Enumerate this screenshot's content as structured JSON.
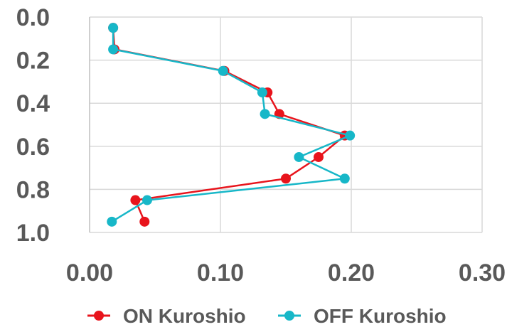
{
  "chart_data": {
    "type": "line",
    "title": "",
    "xlabel": "",
    "ylabel": "",
    "xlim": [
      0.0,
      0.3
    ],
    "ylim": [
      0.0,
      1.0
    ],
    "y_inverted": true,
    "x_ticks": [
      "0.00",
      "0.10",
      "0.20",
      "0.30"
    ],
    "y_ticks": [
      "0.0",
      "0.2",
      "0.4",
      "0.6",
      "0.8",
      "1.0"
    ],
    "grid": "vertical and horizontal",
    "legend_position": "bottom",
    "series": [
      {
        "name": "ON Kuroshio",
        "color": "#e8141c",
        "points": [
          {
            "x": 0.018,
            "y": 0.05
          },
          {
            "x": 0.019,
            "y": 0.15
          },
          {
            "x": 0.103,
            "y": 0.25
          },
          {
            "x": 0.136,
            "y": 0.35
          },
          {
            "x": 0.145,
            "y": 0.45
          },
          {
            "x": 0.195,
            "y": 0.55
          },
          {
            "x": 0.175,
            "y": 0.65
          },
          {
            "x": 0.15,
            "y": 0.75
          },
          {
            "x": 0.035,
            "y": 0.85
          },
          {
            "x": 0.042,
            "y": 0.95
          }
        ]
      },
      {
        "name": "OFF Kuroshio",
        "color": "#17b7c8",
        "points": [
          {
            "x": 0.018,
            "y": 0.05
          },
          {
            "x": 0.018,
            "y": 0.15
          },
          {
            "x": 0.102,
            "y": 0.25
          },
          {
            "x": 0.132,
            "y": 0.35
          },
          {
            "x": 0.134,
            "y": 0.45
          },
          {
            "x": 0.199,
            "y": 0.55
          },
          {
            "x": 0.16,
            "y": 0.65
          },
          {
            "x": 0.195,
            "y": 0.75
          },
          {
            "x": 0.044,
            "y": 0.85
          },
          {
            "x": 0.017,
            "y": 0.95
          }
        ]
      }
    ]
  }
}
